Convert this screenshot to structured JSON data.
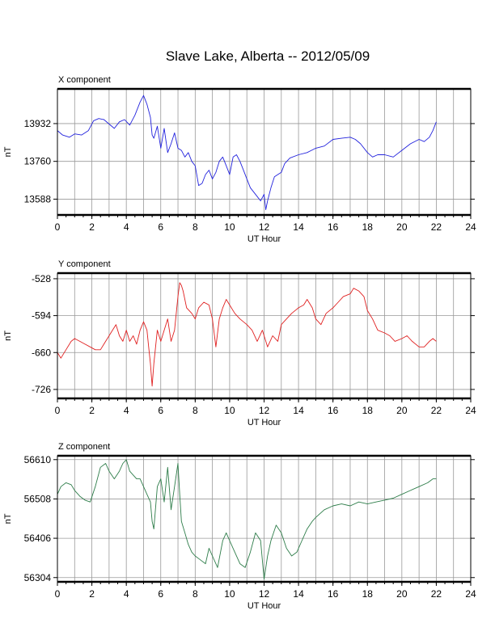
{
  "chart_data": [
    {
      "type": "line",
      "panel_title": "X component",
      "xlabel": "UT Hour",
      "ylabel": "nT",
      "xlim": [
        0,
        24
      ],
      "ylim": [
        13516,
        14090
      ],
      "xticks": [
        0,
        2,
        4,
        6,
        8,
        10,
        12,
        14,
        16,
        18,
        20,
        22,
        24
      ],
      "yticks": [
        13588,
        13760,
        13932
      ],
      "grid": true,
      "color": "#2222dd",
      "series": [
        {
          "x": [
            0,
            0.3,
            0.7,
            1.0,
            1.4,
            1.8,
            2.1,
            2.4,
            2.7,
            3.0,
            3.3,
            3.6,
            3.9,
            4.2,
            4.5,
            4.8,
            5.0,
            5.2,
            5.4,
            5.5,
            5.6,
            5.8,
            6.0,
            6.2,
            6.4,
            6.6,
            6.8,
            7.0,
            7.2,
            7.4,
            7.6,
            7.8,
            8.0,
            8.2,
            8.4,
            8.6,
            8.8,
            9.0,
            9.2,
            9.4,
            9.6,
            9.8,
            10.0,
            10.2,
            10.4,
            10.6,
            10.8,
            11.0,
            11.2,
            11.4,
            11.6,
            11.8,
            12.0,
            12.1,
            12.2,
            12.4,
            12.6,
            12.8,
            13.0,
            13.2,
            13.5,
            14.0,
            14.5,
            15.0,
            15.5,
            16.0,
            16.5,
            17.0,
            17.3,
            17.6,
            18.0,
            18.3,
            18.6,
            19.0,
            19.5,
            20.0,
            20.5,
            21.0,
            21.3,
            21.6,
            21.8,
            22.0
          ],
          "values": [
            13900,
            13880,
            13870,
            13885,
            13880,
            13900,
            13945,
            13955,
            13950,
            13930,
            13910,
            13940,
            13950,
            13925,
            13970,
            14030,
            14060,
            14020,
            13960,
            13880,
            13865,
            13920,
            13820,
            13910,
            13800,
            13840,
            13890,
            13820,
            13810,
            13780,
            13800,
            13760,
            13740,
            13650,
            13660,
            13700,
            13720,
            13680,
            13710,
            13760,
            13780,
            13740,
            13700,
            13780,
            13790,
            13760,
            13720,
            13680,
            13640,
            13620,
            13600,
            13580,
            13610,
            13540,
            13580,
            13640,
            13690,
            13700,
            13710,
            13750,
            13775,
            13790,
            13800,
            13820,
            13830,
            13860,
            13865,
            13870,
            13860,
            13840,
            13800,
            13780,
            13790,
            13790,
            13780,
            13810,
            13840,
            13860,
            13850,
            13870,
            13900,
            13940
          ]
        }
      ]
    },
    {
      "type": "line",
      "panel_title": "Y component",
      "xlabel": "UT Hour",
      "ylabel": "nT",
      "xlim": [
        0,
        24
      ],
      "ylim": [
        -742,
        -518
      ],
      "xticks": [
        0,
        2,
        4,
        6,
        8,
        10,
        12,
        14,
        16,
        18,
        20,
        22,
        24
      ],
      "yticks": [
        -528,
        -594,
        -660,
        -726
      ],
      "grid": true,
      "color": "#e02020",
      "series": [
        {
          "x": [
            0,
            0.2,
            0.5,
            0.8,
            1.0,
            1.3,
            1.6,
            1.9,
            2.2,
            2.5,
            2.8,
            3.0,
            3.2,
            3.4,
            3.6,
            3.8,
            4.0,
            4.2,
            4.4,
            4.6,
            4.8,
            5.0,
            5.2,
            5.3,
            5.4,
            5.5,
            5.6,
            5.8,
            6.0,
            6.2,
            6.4,
            6.6,
            6.8,
            7.0,
            7.1,
            7.2,
            7.3,
            7.5,
            7.8,
            8.0,
            8.2,
            8.5,
            8.8,
            9.0,
            9.2,
            9.4,
            9.6,
            9.8,
            10.0,
            10.3,
            10.6,
            11.0,
            11.3,
            11.6,
            11.9,
            12.2,
            12.5,
            12.8,
            13.0,
            13.3,
            13.6,
            14.0,
            14.3,
            14.5,
            14.8,
            15.0,
            15.3,
            15.6,
            16.0,
            16.3,
            16.6,
            17.0,
            17.2,
            17.5,
            17.8,
            18.0,
            18.3,
            18.6,
            19.0,
            19.3,
            19.6,
            20.0,
            20.3,
            20.6,
            21.0,
            21.3,
            21.6,
            21.8,
            22.0
          ],
          "values": [
            -660,
            -670,
            -655,
            -640,
            -635,
            -640,
            -645,
            -650,
            -655,
            -655,
            -640,
            -630,
            -620,
            -610,
            -630,
            -640,
            -620,
            -640,
            -630,
            -645,
            -620,
            -605,
            -620,
            -650,
            -680,
            -720,
            -680,
            -620,
            -640,
            -620,
            -600,
            -640,
            -620,
            -560,
            -535,
            -540,
            -550,
            -580,
            -590,
            -600,
            -580,
            -570,
            -575,
            -600,
            -650,
            -600,
            -580,
            -565,
            -575,
            -590,
            -600,
            -610,
            -620,
            -640,
            -620,
            -650,
            -630,
            -640,
            -610,
            -600,
            -590,
            -580,
            -575,
            -565,
            -580,
            -600,
            -610,
            -590,
            -580,
            -570,
            -560,
            -555,
            -545,
            -550,
            -560,
            -585,
            -600,
            -620,
            -625,
            -630,
            -640,
            -635,
            -630,
            -640,
            -650,
            -650,
            -640,
            -635,
            -640
          ]
        }
      ]
    },
    {
      "type": "line",
      "panel_title": "Z component",
      "xlabel": "UT Hour",
      "ylabel": "nT",
      "xlim": [
        0,
        24
      ],
      "ylim": [
        56293,
        56620
      ],
      "xticks": [
        0,
        2,
        4,
        6,
        8,
        10,
        12,
        14,
        16,
        18,
        20,
        22,
        24
      ],
      "yticks": [
        56304,
        56406,
        56508,
        56610
      ],
      "grid": true,
      "color": "#2e7d4a",
      "series": [
        {
          "x": [
            0,
            0.2,
            0.5,
            0.8,
            1.0,
            1.3,
            1.6,
            1.9,
            2.2,
            2.5,
            2.8,
            3.0,
            3.3,
            3.6,
            3.8,
            4.0,
            4.2,
            4.4,
            4.6,
            4.8,
            5.0,
            5.2,
            5.4,
            5.5,
            5.6,
            5.8,
            6.0,
            6.2,
            6.4,
            6.6,
            6.8,
            7.0,
            7.1,
            7.2,
            7.4,
            7.6,
            7.8,
            8.0,
            8.3,
            8.6,
            8.8,
            9.0,
            9.3,
            9.6,
            9.8,
            10.0,
            10.3,
            10.6,
            10.9,
            11.2,
            11.5,
            11.8,
            12.0,
            12.2,
            12.4,
            12.7,
            13.0,
            13.3,
            13.6,
            13.9,
            14.2,
            14.5,
            14.8,
            15.0,
            15.5,
            16.0,
            16.5,
            17.0,
            17.5,
            18.0,
            18.5,
            19.0,
            19.5,
            20.0,
            20.5,
            21.0,
            21.5,
            21.8,
            22.0
          ],
          "values": [
            56520,
            56540,
            56550,
            56545,
            56530,
            56515,
            56505,
            56500,
            56540,
            56590,
            56600,
            56580,
            56560,
            56580,
            56600,
            56610,
            56580,
            56570,
            56560,
            56560,
            56540,
            56520,
            56500,
            56450,
            56430,
            56540,
            56560,
            56500,
            56590,
            56480,
            56540,
            56600,
            56520,
            56450,
            56420,
            56390,
            56370,
            56360,
            56350,
            56340,
            56380,
            56360,
            56330,
            56400,
            56420,
            56400,
            56370,
            56340,
            56330,
            56370,
            56420,
            56400,
            56300,
            56360,
            56400,
            56440,
            56420,
            56380,
            56360,
            56370,
            56400,
            56430,
            56450,
            56460,
            56480,
            56490,
            56495,
            56490,
            56500,
            56495,
            56500,
            56505,
            56510,
            56520,
            56530,
            56540,
            56550,
            56560,
            56560
          ]
        }
      ]
    }
  ],
  "figure": {
    "title": "Slave Lake, Alberta -- 2012/05/09"
  }
}
